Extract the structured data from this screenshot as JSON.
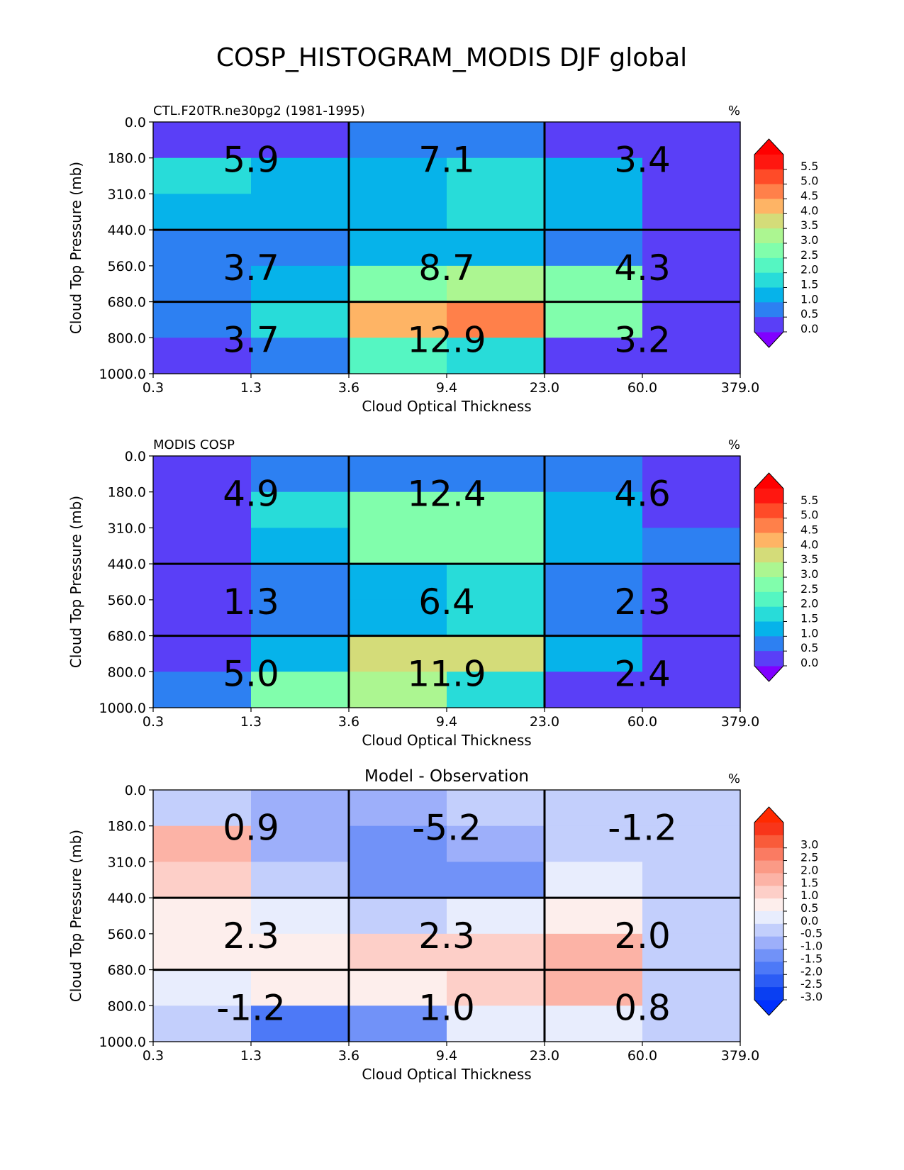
{
  "suptitle": "COSP_HISTOGRAM_MODIS DJF global",
  "chart_data": [
    {
      "type": "heatmap",
      "left_title": "CTL.F20TR.ne30pg2 (1981-1995)",
      "center_title": "",
      "units": "%",
      "xlabel": "Cloud Optical Thickness",
      "ylabel": "Cloud Top Pressure (mb)",
      "xticks": [
        "0.3",
        "1.3",
        "3.6",
        "9.4",
        "23.0",
        "60.0",
        "379.0"
      ],
      "yticks": [
        "0.0",
        "180.0",
        "310.0",
        "440.0",
        "560.0",
        "680.0",
        "800.0",
        "1000.0"
      ],
      "cells": [
        [
          0.1,
          0.1,
          0.6,
          0.6,
          0.1,
          0.1
        ],
        [
          1.8,
          1.3,
          1.3,
          1.8,
          1.3,
          0.1
        ],
        [
          1.3,
          1.3,
          1.3,
          1.8,
          1.3,
          0.1
        ],
        [
          0.8,
          0.8,
          1.3,
          1.3,
          0.8,
          0.1
        ],
        [
          0.8,
          1.3,
          2.8,
          3.2,
          2.8,
          0.1
        ],
        [
          0.8,
          1.8,
          4.3,
          4.8,
          2.8,
          0.1
        ],
        [
          0.1,
          0.8,
          2.3,
          1.8,
          0.1,
          0.1
        ]
      ],
      "group_labels": [
        [
          "5.9",
          "7.1",
          "3.4"
        ],
        [
          "3.7",
          "8.7",
          "4.3"
        ],
        [
          "3.7",
          "12.9",
          "3.2"
        ]
      ],
      "colorbar": {
        "ticks": [
          "5.5",
          "5.0",
          "4.5",
          "4.0",
          "3.5",
          "3.0",
          "2.5",
          "2.0",
          "1.5",
          "1.0",
          "0.5",
          "0.0"
        ],
        "levels": [
          0.0,
          0.5,
          1.0,
          1.5,
          2.0,
          2.5,
          3.0,
          3.5,
          4.0,
          4.5,
          5.0,
          5.5
        ],
        "colors": [
          "#5a3ff7",
          "#2d80f2",
          "#06b3ea",
          "#28dcd9",
          "#55f6c2",
          "#81feac",
          "#acf691",
          "#d4dc79",
          "#feb465",
          "#ff804a",
          "#ff4b28",
          "#ff1710"
        ],
        "under": "#8000ff",
        "over": "#ff0000"
      }
    },
    {
      "type": "heatmap",
      "left_title": "MODIS COSP",
      "center_title": "",
      "units": "%",
      "xlabel": "Cloud Optical Thickness",
      "ylabel": "Cloud Top Pressure (mb)",
      "xticks": [
        "0.3",
        "1.3",
        "3.6",
        "9.4",
        "23.0",
        "60.0",
        "379.0"
      ],
      "yticks": [
        "0.0",
        "180.0",
        "310.0",
        "440.0",
        "560.0",
        "680.0",
        "800.0",
        "1000.0"
      ],
      "cells": [
        [
          0.1,
          0.8,
          0.8,
          0.8,
          0.8,
          0.1
        ],
        [
          0.1,
          1.8,
          2.8,
          2.8,
          1.3,
          0.1
        ],
        [
          0.1,
          1.3,
          2.8,
          2.8,
          1.3,
          0.8
        ],
        [
          0.1,
          0.8,
          1.3,
          1.8,
          0.8,
          0.1
        ],
        [
          0.1,
          0.8,
          1.3,
          1.8,
          0.8,
          0.1
        ],
        [
          0.1,
          1.3,
          3.8,
          3.8,
          1.3,
          0.1
        ],
        [
          0.8,
          2.8,
          3.2,
          1.8,
          0.1,
          0.1
        ]
      ],
      "group_labels": [
        [
          "4.9",
          "12.4",
          "4.6"
        ],
        [
          "1.3",
          "6.4",
          "2.3"
        ],
        [
          "5.0",
          "11.9",
          "2.4"
        ]
      ],
      "colorbar": {
        "ticks": [
          "5.5",
          "5.0",
          "4.5",
          "4.0",
          "3.5",
          "3.0",
          "2.5",
          "2.0",
          "1.5",
          "1.0",
          "0.5",
          "0.0"
        ],
        "levels": [
          0.0,
          0.5,
          1.0,
          1.5,
          2.0,
          2.5,
          3.0,
          3.5,
          4.0,
          4.5,
          5.0,
          5.5
        ],
        "colors": [
          "#5a3ff7",
          "#2d80f2",
          "#06b3ea",
          "#28dcd9",
          "#55f6c2",
          "#81feac",
          "#acf691",
          "#d4dc79",
          "#feb465",
          "#ff804a",
          "#ff4b28",
          "#ff1710"
        ],
        "under": "#8000ff",
        "over": "#ff0000"
      }
    },
    {
      "type": "heatmap",
      "left_title": "",
      "center_title": "Model - Observation",
      "units": "%",
      "xlabel": "Cloud Optical Thickness",
      "ylabel": "Cloud Top Pressure (mb)",
      "xticks": [
        "0.3",
        "1.3",
        "3.6",
        "9.4",
        "23.0",
        "60.0",
        "379.0"
      ],
      "yticks": [
        "0.0",
        "180.0",
        "310.0",
        "440.0",
        "560.0",
        "680.0",
        "800.0",
        "1000.0"
      ],
      "cells": [
        [
          -0.2,
          -0.7,
          -0.7,
          -0.2,
          -0.2,
          -0.2
        ],
        [
          1.7,
          -0.7,
          -1.2,
          -0.7,
          -0.2,
          -0.2
        ],
        [
          1.2,
          -0.2,
          -1.2,
          -1.2,
          0.2,
          -0.2
        ],
        [
          0.7,
          0.2,
          -0.2,
          0.2,
          0.7,
          -0.2
        ],
        [
          0.7,
          0.7,
          1.2,
          1.2,
          1.7,
          -0.2
        ],
        [
          0.2,
          0.7,
          0.7,
          1.2,
          1.7,
          -0.2
        ],
        [
          -0.2,
          -1.7,
          -1.2,
          0.2,
          0.2,
          -0.2
        ]
      ],
      "group_labels": [
        [
          "0.9",
          "-5.2",
          "-1.2"
        ],
        [
          "2.3",
          "2.3",
          "2.0"
        ],
        [
          "-1.2",
          "1.0",
          "0.8"
        ]
      ],
      "colorbar": {
        "ticks": [
          "3.0",
          "2.5",
          "2.0",
          "1.5",
          "1.0",
          "0.5",
          "0.0",
          "-0.5",
          "-1.0",
          "-1.5",
          "-2.0",
          "-2.5",
          "-3.0"
        ],
        "levels": [
          -3.0,
          -2.5,
          -2.0,
          -1.5,
          -1.0,
          -0.5,
          0.0,
          0.5,
          1.0,
          1.5,
          2.0,
          2.5,
          3.0
        ],
        "colors": [
          "#0a3ff2",
          "#2b5cf5",
          "#4d79f7",
          "#7192f8",
          "#9dafFa",
          "#c3cffc",
          "#e8edfd",
          "#fdeeec",
          "#fdcfc8",
          "#fcb3a6",
          "#fb9a86",
          "#fa7b62",
          "#f95b3a",
          "#f8351a"
        ],
        "under": "#0030ff",
        "over": "#ff2a00"
      }
    }
  ]
}
